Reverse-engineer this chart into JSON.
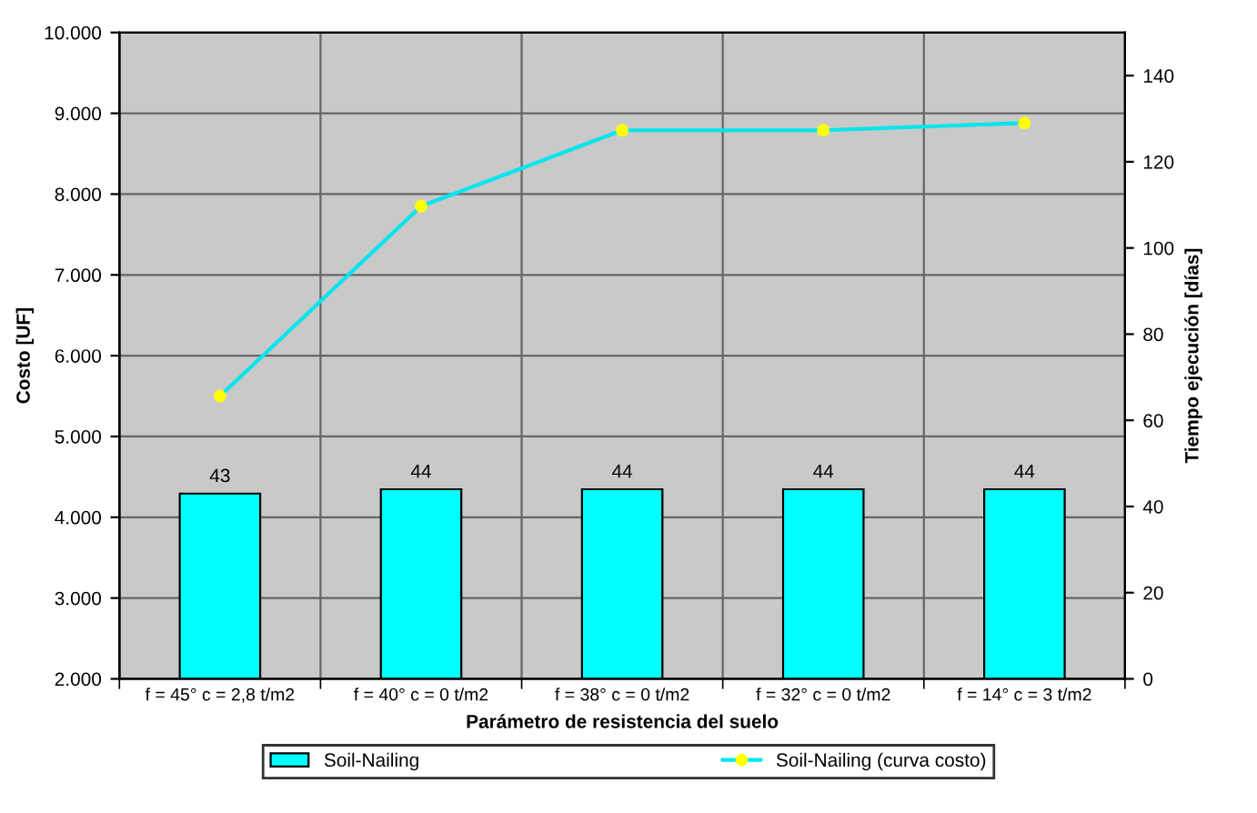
{
  "chart_data": {
    "type": "bar",
    "xlabel": "Parámetro de resistencia del suelo",
    "ylabel": "Costo [UF]",
    "y2label": "Tiempo ejecución [días]",
    "categories": [
      "f = 45° c = 2,8 t/m2",
      "f = 40° c = 0 t/m2",
      "f = 38° c = 0 t/m2",
      "f = 32° c = 0 t/m2",
      "f = 14° c = 3 t/m2"
    ],
    "series": [
      {
        "name": "Soil-Nailing",
        "axis": "y2",
        "color": "#00ffff",
        "values": [
          43,
          44,
          44,
          44,
          44
        ],
        "data_labels": true
      },
      {
        "name": "Soil-Nailing (curva costo)",
        "type": "line",
        "color": "#00e5ee",
        "marker": "circle",
        "values": [
          5500,
          7850,
          8790,
          8790,
          8880
        ]
      }
    ],
    "ylim": [
      2000,
      10000
    ],
    "yticks": [
      {
        "value": 2000,
        "label": "2.000"
      },
      {
        "value": 3000,
        "label": "3.000"
      },
      {
        "value": 4000,
        "label": "4.000"
      },
      {
        "value": 5000,
        "label": "5.000"
      },
      {
        "value": 6000,
        "label": "6.000"
      },
      {
        "value": 7000,
        "label": "7.000"
      },
      {
        "value": 8000,
        "label": "8.000"
      },
      {
        "value": 9000,
        "label": "9.000"
      },
      {
        "value": 10000,
        "label": "10.000"
      }
    ],
    "y2lim": [
      0,
      150
    ],
    "y2ticks": [
      0,
      20,
      40,
      60,
      80,
      100,
      120,
      140
    ],
    "grid": true,
    "legend": "bottom"
  }
}
